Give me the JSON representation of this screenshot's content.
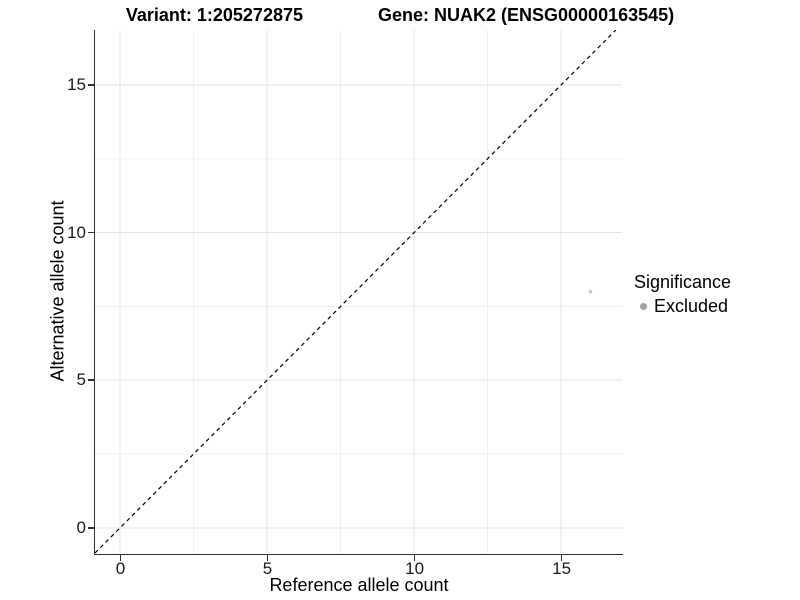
{
  "header": {
    "variant": "Variant: 1:205272875",
    "gene": "Gene: NUAK2 (ENSG00000163545)"
  },
  "chart_data": {
    "type": "scatter",
    "title": "Variant: 1:205272875   Gene: NUAK2 (ENSG00000163545)",
    "xlabel": "Reference allele count",
    "ylabel": "Alternative allele count",
    "xlim": [
      -0.85,
      17.07
    ],
    "ylim": [
      -0.85,
      16.86
    ],
    "x_ticks": [
      0,
      5,
      10,
      15
    ],
    "y_ticks": [
      0,
      5,
      10,
      15
    ],
    "x_minor_ticks": [
      2.5,
      7.5,
      12.5
    ],
    "y_minor_ticks": [
      2.5,
      7.5,
      12.5
    ],
    "grid": "major and minor, light gray on white",
    "points": [
      {
        "x": 16,
        "y": 8,
        "series": "Excluded"
      }
    ],
    "identity_line": {
      "slope": 1,
      "intercept": 0,
      "style": "dashed"
    },
    "legend": {
      "title": "Significance",
      "position": "right",
      "entries": [
        {
          "label": "Excluded",
          "color": "#a2a2a2"
        }
      ]
    }
  },
  "colors": {
    "background": "#ffffff",
    "axis_line": "#2f2f2f",
    "tick_label": "#1a1a1a",
    "grid_major": "#e4e4e4",
    "grid_minor": "#f0f0f0",
    "identity_line": "#000000",
    "point": "#c7c7c7",
    "legend_dot": "#a2a2a2"
  }
}
